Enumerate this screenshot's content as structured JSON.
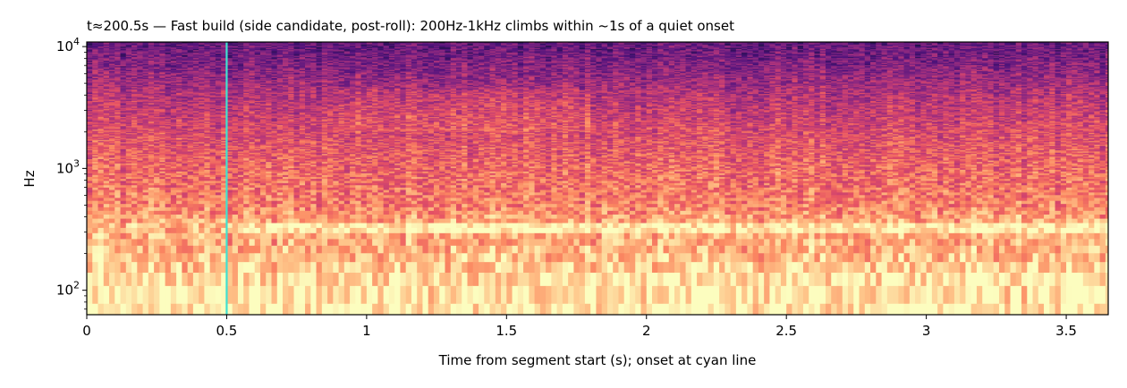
{
  "chart_data": {
    "type": "heatmap",
    "subtype": "spectrogram",
    "title": "t≈200.5s — Fast build (side candidate, post-roll): 200Hz-1kHz climbs within ~1s of a quiet onset",
    "xlabel": "Time from segment start (s); onset at cyan line",
    "ylabel": "Hz",
    "x_scale": "linear",
    "y_scale": "log",
    "xlim": [
      0,
      3.65
    ],
    "ylim": [
      63,
      10900
    ],
    "x_ticks": [
      0,
      0.5,
      1,
      1.5,
      2,
      2.5,
      3,
      3.5
    ],
    "x_tick_labels": [
      "0",
      "0.5",
      "1",
      "1.5",
      "2",
      "2.5",
      "3",
      "3.5"
    ],
    "y_ticks": [
      100,
      1000,
      10000
    ],
    "y_tick_labels": [
      {
        "base": "10",
        "exp": "2"
      },
      {
        "base": "10",
        "exp": "3"
      },
      {
        "base": "10",
        "exp": "4"
      }
    ],
    "colormap": "magma",
    "grid": false,
    "legend": "none",
    "onset_line": {
      "x": 0.5,
      "color": "#40e0d0"
    },
    "tonal_band_hz": 330,
    "energy_profile": {
      "description": "relative brightness by frequency band (0 = dark, 1 = bright)",
      "freq_hz": [
        63,
        100,
        150,
        250,
        330,
        500,
        1000,
        2000,
        4000,
        7000,
        10900
      ],
      "level": [
        0.97,
        0.95,
        0.9,
        0.82,
        0.86,
        0.74,
        0.68,
        0.6,
        0.5,
        0.38,
        0.3
      ]
    }
  }
}
